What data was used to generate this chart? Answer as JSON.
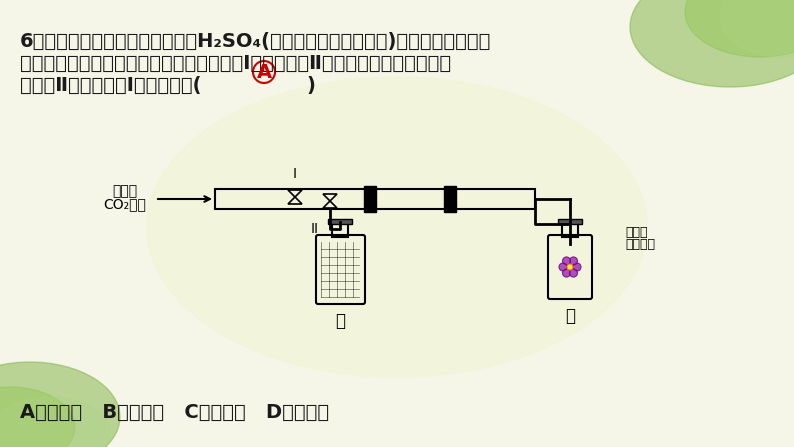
{
  "bg_color": "#f5f5e8",
  "text_color": "#1a1a1a",
  "answer_color": "#cc0000",
  "line1": "6．如图所示，甲瓶中盛放的是浓H₂SO₄(具有吸水性可作干燥剂)，乙瓶中放的是用",
  "line2": "石蕊溶液染成紫色的干燥小花。若关闭阀门Ⅰ，打开阀门Ⅱ，紫色小花不变色；若关",
  "line3": "闭阀门Ⅱ，打开阀门Ⅰ，紫色小花(",
  "answer": "A",
  "line3_end": "    )",
  "bottom_line": "A．变红色   B．变蓝色   C．变白色   D．不变色",
  "label_chao": "潮湿的",
  "label_co2": "CO₂气体",
  "label_I": "I",
  "label_II": "II",
  "label_jia": "甲",
  "label_yi": "乙",
  "label_dry": "干燥的",
  "label_flower": "紫色小花"
}
